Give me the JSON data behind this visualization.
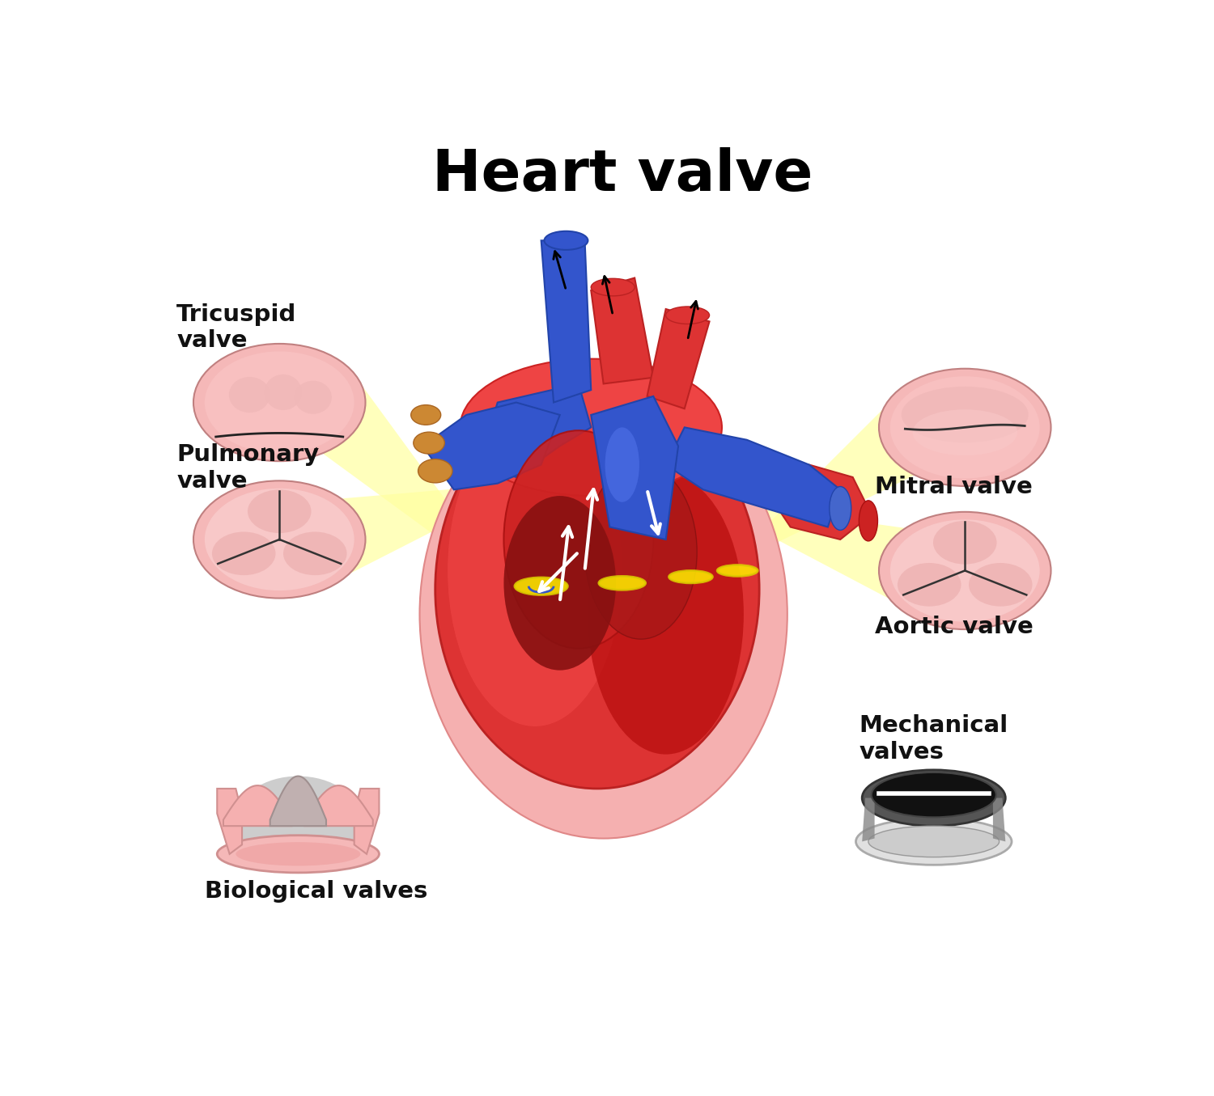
{
  "title": "Heart valve",
  "title_fontsize": 52,
  "title_fontweight": "bold",
  "bg_color": "#ffffff",
  "labels": {
    "pulmonary_valve": "Pulmonary\nvalve",
    "tricuspid_valve": "Tricuspid\nvalve",
    "aortic_valve": "Aortic valve",
    "mitral_valve": "Mitral valve",
    "biological_valves": "Biological valves",
    "mechanical_valves": "Mechanical\nvalves"
  },
  "label_fontsize": 21,
  "label_fontweight": "bold",
  "pink_outer": "#f5b8b8",
  "pink_inner": "#f0a0a0",
  "pink_leaflet": "#f8c8c8",
  "pink_shade": "#e89090",
  "red_heart": "#cc2222",
  "red_dark": "#aa1111",
  "red_bright": "#dd3333",
  "blue_vessel": "#3355cc",
  "blue_dark": "#2244aa",
  "blue_light": "#5577dd",
  "yellow_beam": "#ffffa0",
  "yellow_beam2": "#ffff88",
  "orange_vessel": "#cc8833",
  "dark_line": "#222222",
  "white": "#ffffff",
  "gray_light": "#cccccc",
  "gray_dark": "#888888",
  "black_disk": "#111111"
}
